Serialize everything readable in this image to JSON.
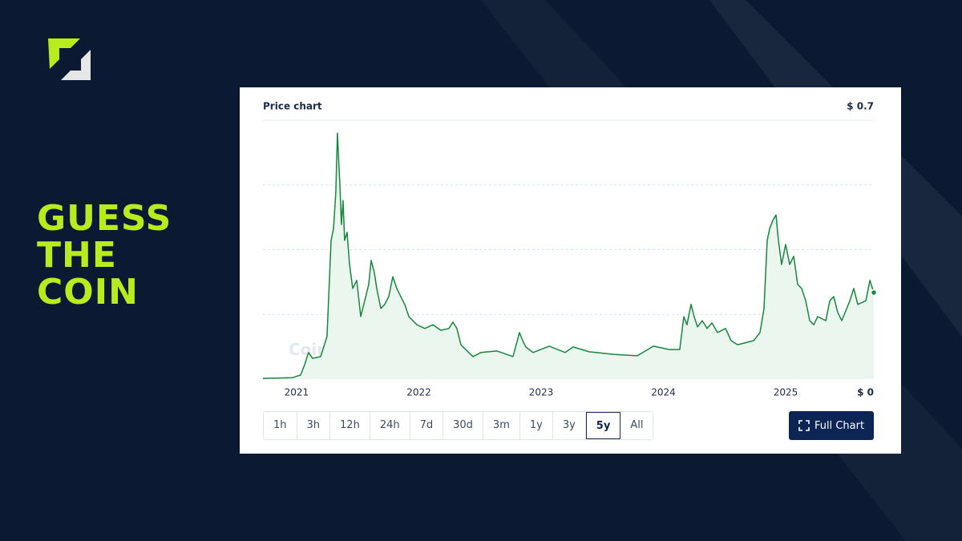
{
  "heading": [
    "GUESS",
    "THE",
    "COIN"
  ],
  "watermark": "Coinranking",
  "ranges": [
    "1h",
    "3h",
    "12h",
    "24h",
    "7d",
    "30d",
    "3m",
    "1y",
    "3y",
    "5y",
    "All"
  ],
  "selected_range": 9,
  "full_chart_button": "Full Chart",
  "chart_data": {
    "type": "line",
    "title": "Price chart",
    "x": [
      2020.725,
      2020.967,
      2021.033,
      2021.066,
      2021.098,
      2021.131,
      2021.197,
      2021.249,
      2021.282,
      2021.302,
      2021.321,
      2021.334,
      2021.354,
      2021.367,
      2021.38,
      2021.393,
      2021.413,
      2021.433,
      2021.459,
      2021.492,
      2021.525,
      2021.557,
      2021.59,
      2021.61,
      2021.636,
      2021.656,
      2021.689,
      2021.721,
      2021.754,
      2021.787,
      2021.82,
      2021.852,
      2021.885,
      2021.918,
      2021.984,
      2022.049,
      2022.115,
      2022.18,
      2022.246,
      2022.279,
      2022.311,
      2022.344,
      2022.377,
      2022.443,
      2022.508,
      2022.639,
      2022.77,
      2022.823,
      2022.849,
      2022.875,
      2022.934,
      2023.066,
      2023.197,
      2023.262,
      2023.393,
      2023.59,
      2023.787,
      2023.918,
      2024.049,
      2024.134,
      2024.167,
      2024.193,
      2024.226,
      2024.252,
      2024.279,
      2024.318,
      2024.357,
      2024.397,
      2024.443,
      2024.508,
      2024.554,
      2024.607,
      2024.738,
      2024.79,
      2024.823,
      2024.849,
      2024.869,
      2024.895,
      2024.921,
      2024.941,
      2024.967,
      2025.0,
      2025.033,
      2025.066,
      2025.098,
      2025.131,
      2025.164,
      2025.197,
      2025.23,
      2025.262,
      2025.328,
      2025.361,
      2025.393,
      2025.426,
      2025.459,
      2025.525,
      2025.557,
      2025.59,
      2025.656,
      2025.689,
      2025.721
    ],
    "series": [
      {
        "color": "#17873d",
        "values": [
          0.002,
          0.004,
          0.011,
          0.039,
          0.072,
          0.056,
          0.061,
          0.115,
          0.375,
          0.407,
          0.505,
          0.665,
          0.527,
          0.418,
          0.483,
          0.375,
          0.397,
          0.31,
          0.245,
          0.267,
          0.169,
          0.212,
          0.256,
          0.321,
          0.288,
          0.245,
          0.191,
          0.202,
          0.223,
          0.277,
          0.245,
          0.223,
          0.202,
          0.169,
          0.147,
          0.137,
          0.147,
          0.132,
          0.137,
          0.154,
          0.137,
          0.093,
          0.082,
          0.061,
          0.072,
          0.076,
          0.061,
          0.126,
          0.104,
          0.087,
          0.072,
          0.089,
          0.072,
          0.087,
          0.074,
          0.067,
          0.063,
          0.089,
          0.08,
          0.08,
          0.169,
          0.147,
          0.202,
          0.169,
          0.141,
          0.158,
          0.137,
          0.152,
          0.126,
          0.137,
          0.104,
          0.093,
          0.104,
          0.126,
          0.191,
          0.375,
          0.407,
          0.429,
          0.444,
          0.375,
          0.31,
          0.364,
          0.31,
          0.332,
          0.256,
          0.245,
          0.212,
          0.158,
          0.147,
          0.169,
          0.158,
          0.212,
          0.223,
          0.18,
          0.158,
          0.212,
          0.245,
          0.202,
          0.212,
          0.267,
          0.234
        ]
      }
    ],
    "fill_color": "#eaf6ee",
    "xlim": [
      2020.725,
      2025.721
    ],
    "xticks": [
      2021,
      2022,
      2023,
      2024,
      2025
    ],
    "ylim": [
      0,
      0.7
    ],
    "yticks": [
      {
        "value": 0,
        "label": "$ 0"
      },
      {
        "value": 0.7,
        "label": "$ 0.7"
      }
    ],
    "gridlines": [
      0.175,
      0.35,
      0.525
    ]
  }
}
